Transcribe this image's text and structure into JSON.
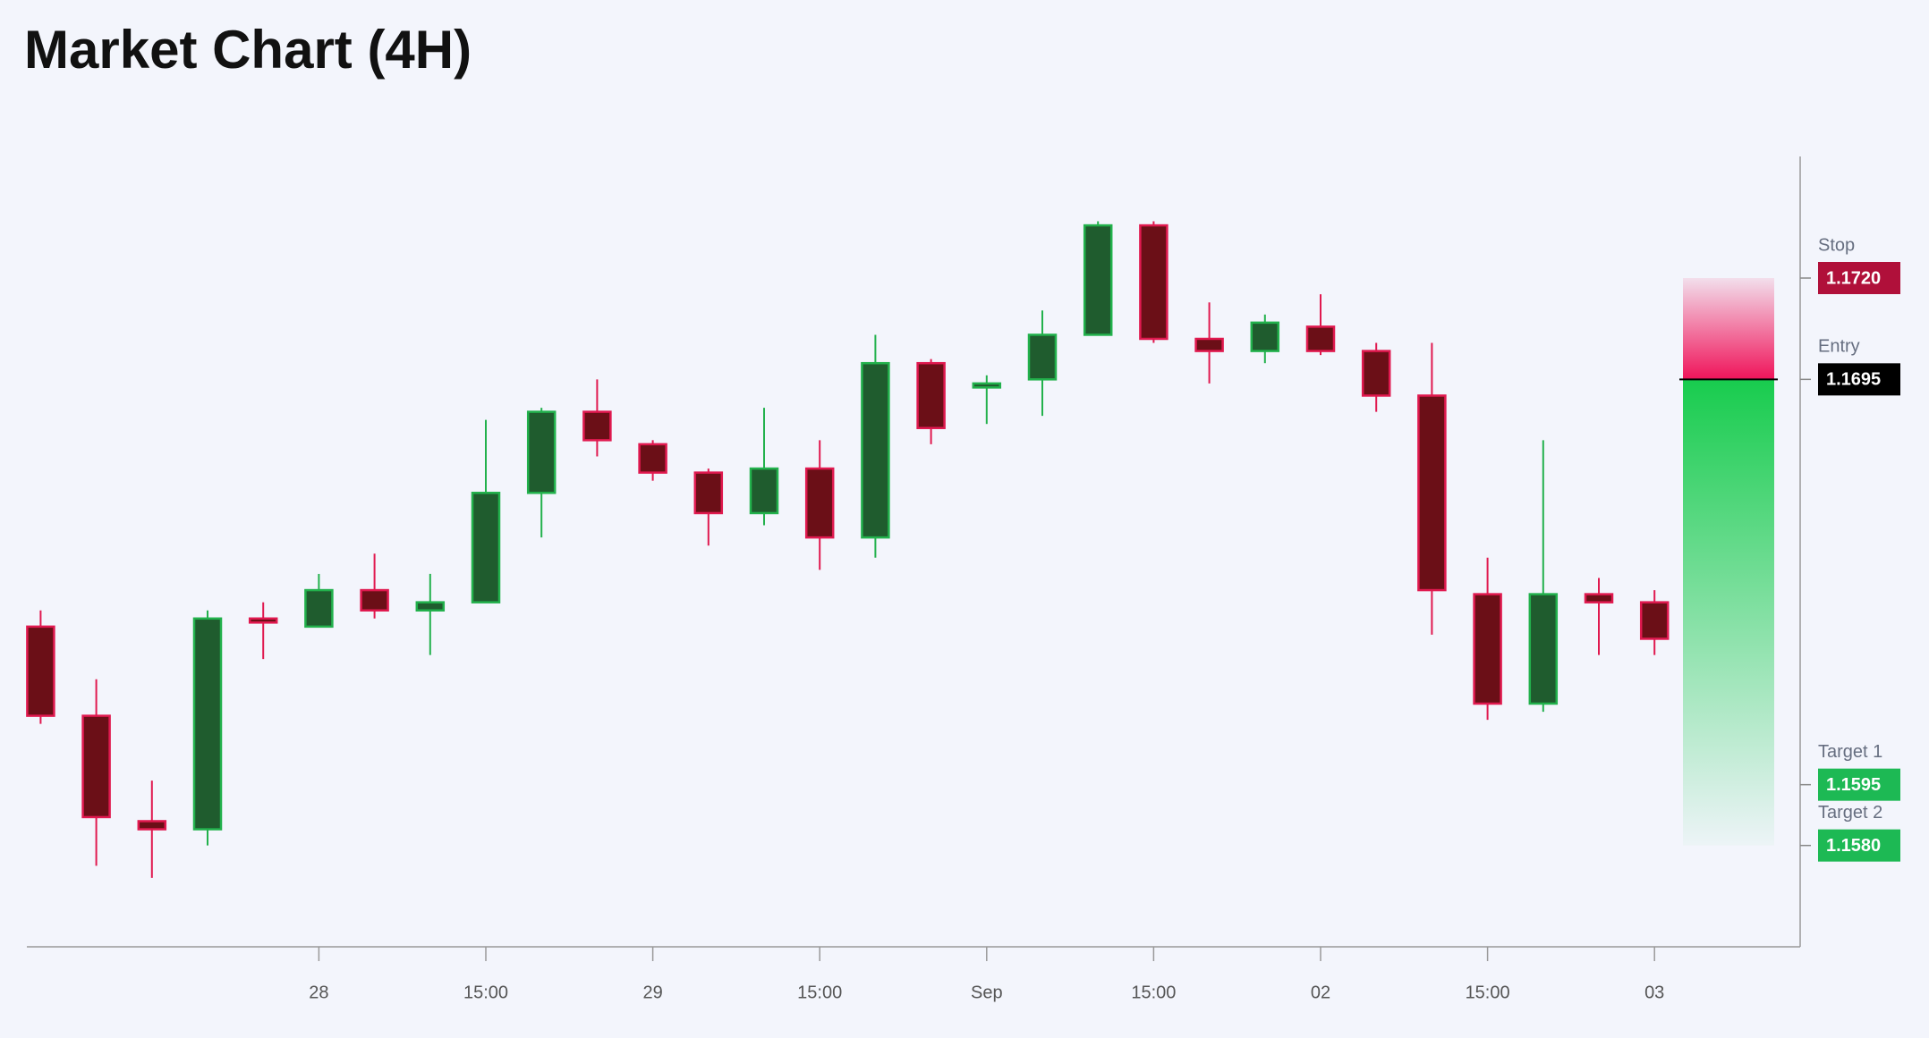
{
  "chart_data": {
    "type": "candlestick",
    "title": "Market Chart (4H)",
    "categories": [
      null,
      null,
      null,
      null,
      null,
      "28",
      null,
      null,
      "15:00",
      null,
      null,
      "29",
      null,
      null,
      "15:00",
      null,
      null,
      "Sep",
      null,
      null,
      "15:00",
      null,
      null,
      "02",
      null,
      null,
      "15:00",
      null,
      null,
      "03"
    ],
    "open": [
      1.1634,
      1.1612,
      1.1586,
      1.1584,
      1.1636,
      1.1634,
      1.1643,
      1.1638,
      1.164,
      1.1667,
      1.1687,
      1.1679,
      1.1672,
      1.1662,
      1.1673,
      1.1656,
      1.1699,
      1.1693,
      1.1695,
      1.1706,
      1.1733,
      1.1705,
      1.1702,
      1.1708,
      1.1702,
      1.1691,
      1.1642,
      1.1615,
      1.1642,
      1.164
    ],
    "high": [
      1.1638,
      1.1621,
      1.1596,
      1.1638,
      1.164,
      1.1647,
      1.1652,
      1.1647,
      1.1685,
      1.1688,
      1.1695,
      1.168,
      1.1673,
      1.1688,
      1.168,
      1.1706,
      1.17,
      1.1696,
      1.1712,
      1.1734,
      1.1734,
      1.1714,
      1.1711,
      1.1716,
      1.1704,
      1.1704,
      1.1651,
      1.168,
      1.1646,
      1.1643
    ],
    "low": [
      1.161,
      1.1575,
      1.1572,
      1.158,
      1.1626,
      1.1634,
      1.1636,
      1.1627,
      1.164,
      1.1656,
      1.1676,
      1.167,
      1.1654,
      1.1659,
      1.1648,
      1.1651,
      1.1679,
      1.1684,
      1.1686,
      1.1706,
      1.1704,
      1.1694,
      1.1699,
      1.1701,
      1.1687,
      1.1632,
      1.1611,
      1.1613,
      1.1627,
      1.1627
    ],
    "close": [
      1.1612,
      1.1587,
      1.1584,
      1.1636,
      1.1635,
      1.1643,
      1.1638,
      1.164,
      1.1667,
      1.1687,
      1.168,
      1.1672,
      1.1662,
      1.1673,
      1.1656,
      1.1699,
      1.1683,
      1.1694,
      1.1706,
      1.1733,
      1.1705,
      1.1702,
      1.1709,
      1.1702,
      1.1691,
      1.1643,
      1.1615,
      1.1642,
      1.164,
      1.1631
    ],
    "up_color": "#22b14c",
    "up_fill": "#1f5c2e",
    "down_color": "#e0194f",
    "down_fill": "#6b0f17",
    "ylim": [
      1.1555,
      1.175
    ],
    "levels": [
      {
        "name": "Stop",
        "value": 1.172,
        "value_label": "1.1720",
        "color": "#b0103a"
      },
      {
        "name": "Entry",
        "value": 1.1695,
        "value_label": "1.1695",
        "color": "#000000"
      },
      {
        "name": "Target 1",
        "value": 1.1595,
        "value_label": "1.1595",
        "color": "#1db954"
      },
      {
        "name": "Target 2",
        "value": 1.158,
        "value_label": "1.1580",
        "color": "#1db954"
      }
    ]
  }
}
